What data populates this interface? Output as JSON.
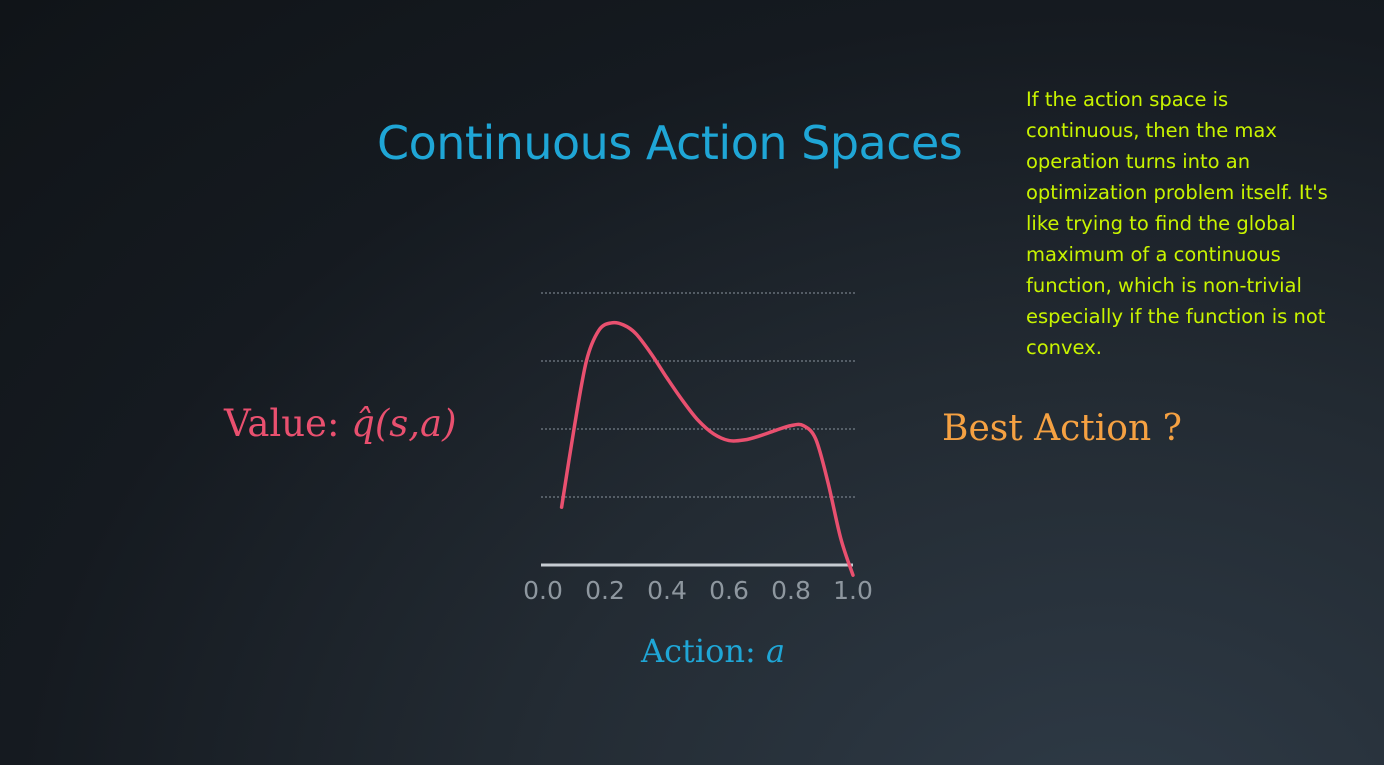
{
  "title": "Continuous Action Spaces",
  "note": "If the action space is continuous, then the max operation turns into an optimization problem itself. It's like trying to find the global maximum of a continuous function, which is non-trivial especially if the function is not convex.",
  "labels": {
    "value_prefix": "Value: ",
    "value_math": "q̂(s,a)",
    "best_action": "Best Action ?",
    "action_prefix": "Action: ",
    "action_var": "a"
  },
  "colors": {
    "title": "#1fa6d6",
    "note": "#c9f400",
    "curve": "#e9506f",
    "best_action": "#f5a142",
    "axis": "#c6ccd2",
    "grid": "#8a949e"
  },
  "chart_data": {
    "type": "line",
    "x_ticks": [
      "0.0",
      "0.2",
      "0.4",
      "0.6",
      "0.8",
      "1.0"
    ],
    "xlim": [
      0.0,
      1.0
    ],
    "ylim": [
      0,
      4
    ],
    "grid": true,
    "grid_lines": [
      1,
      2,
      3,
      4
    ],
    "series": [
      {
        "x": [
          0.06,
          0.1,
          0.14,
          0.18,
          0.22,
          0.26,
          0.3,
          0.35,
          0.4,
          0.45,
          0.5,
          0.55,
          0.6,
          0.65,
          0.7,
          0.75,
          0.8,
          0.84,
          0.88,
          0.92,
          0.96,
          1.0
        ],
        "y": [
          0.85,
          2.0,
          3.0,
          3.45,
          3.56,
          3.53,
          3.4,
          3.1,
          2.75,
          2.42,
          2.13,
          1.93,
          1.83,
          1.84,
          1.9,
          1.98,
          2.05,
          2.05,
          1.85,
          1.2,
          0.4,
          -0.15
        ]
      }
    ]
  }
}
